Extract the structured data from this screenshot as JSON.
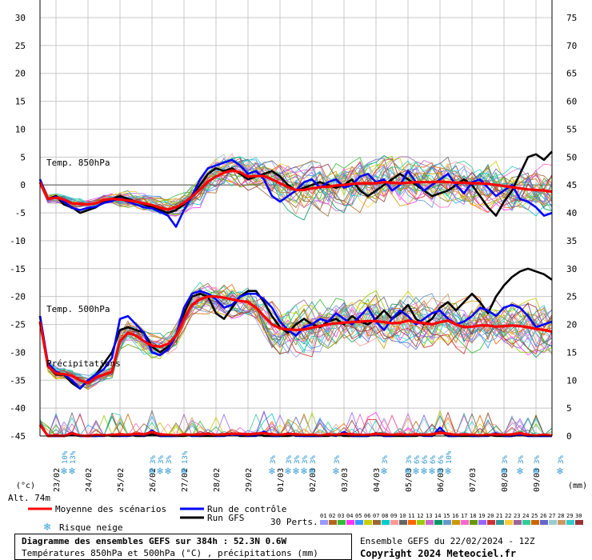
{
  "header": {
    "unit_left": "(°c)",
    "unit_right": "(mm)",
    "altitude": "Alt. 74m"
  },
  "labels": {
    "temp850": "Temp. 850hPa",
    "temp500": "Temp. 500hPa",
    "precip": "Précipitations"
  },
  "legend": {
    "mean": "Moyenne des scénarios",
    "control": "Run de contrôle",
    "gfs": "Run GFS",
    "snow": "Risque neige",
    "perts_label": "30 Perts.",
    "colors": {
      "mean": "#ff0000",
      "control": "#0000ff",
      "gfs": "#000000"
    }
  },
  "footer": {
    "title": "Diagramme des ensembles GEFS sur 384h : 52.3N 0.6W",
    "subtitle": "Températures 850hPa et 500hPa (°C) , précipitations (mm)",
    "run": "Ensemble GEFS du 22/02/2024 - 12Z",
    "copyright": "Copyright 2024 Meteociel.fr"
  },
  "snow_risk": [
    {
      "hour": 30,
      "label": "10%"
    },
    {
      "hour": 36,
      "label": "13%"
    },
    {
      "hour": 96,
      "label": "3%"
    },
    {
      "hour": 102,
      "label": "3%"
    },
    {
      "hour": 108,
      "label": "3%"
    },
    {
      "hour": 120,
      "label": "13%"
    },
    {
      "hour": 186,
      "label": "3%"
    },
    {
      "hour": 198,
      "label": "3%"
    },
    {
      "hour": 204,
      "label": "3%"
    },
    {
      "hour": 210,
      "label": "3%"
    },
    {
      "hour": 216,
      "label": "3%"
    },
    {
      "hour": 234,
      "label": "3%"
    },
    {
      "hour": 270,
      "label": "3%"
    },
    {
      "hour": 288,
      "label": "3%"
    },
    {
      "hour": 294,
      "label": "6%"
    },
    {
      "hour": 300,
      "label": "6%"
    },
    {
      "hour": 306,
      "label": "6%"
    },
    {
      "hour": 312,
      "label": "6%"
    },
    {
      "hour": 318,
      "label": "10%"
    },
    {
      "hour": 360,
      "label": "3%"
    },
    {
      "hour": 372,
      "label": "3%"
    },
    {
      "hour": 384,
      "label": "3%"
    },
    {
      "hour": 402,
      "label": "3%"
    }
  ],
  "chart_data": {
    "type": "line",
    "title": "Diagramme des ensembles GEFS sur 384h : 52.3N 0.6W",
    "x_unit": "forecast hour from 22/02/2024 12Z (6h steps)",
    "x_ticks": [
      "23/02",
      "24/02",
      "25/02",
      "26/02",
      "27/02",
      "28/02",
      "29/02",
      "01/03",
      "02/03",
      "03/03",
      "04/03",
      "05/03",
      "06/03",
      "07/03",
      "08/03",
      "09/03"
    ],
    "y_left": {
      "label": "(°c)",
      "range": [
        -45,
        30
      ],
      "ticks": [
        30,
        25,
        20,
        15,
        10,
        5,
        0,
        -5,
        -10,
        -15,
        -20,
        -25,
        -30,
        -35,
        -40,
        -45
      ]
    },
    "y_right": {
      "label": "(mm)",
      "range": [
        0,
        75
      ],
      "ticks": [
        75,
        70,
        65,
        60,
        55,
        50,
        45,
        40,
        35,
        30,
        25,
        20,
        15,
        10,
        5,
        0
      ]
    },
    "grid": true,
    "perturbation_count": 30,
    "perturbation_labels": [
      "01",
      "02",
      "03",
      "04",
      "05",
      "06",
      "07",
      "08",
      "09",
      "10",
      "11",
      "12",
      "13",
      "14",
      "15",
      "16",
      "17",
      "18",
      "19",
      "20",
      "21",
      "22",
      "23",
      "24",
      "25",
      "26",
      "27",
      "28",
      "29",
      "30"
    ],
    "perturbation_colors": [
      "#9999ff",
      "#b5651d",
      "#33bb33",
      "#ff33ff",
      "#3399ff",
      "#cccc00",
      "#996633",
      "#00cccc",
      "#ff9999",
      "#666666",
      "#ff6600",
      "#99cc00",
      "#cc66cc",
      "#009966",
      "#6699cc",
      "#cc9900",
      "#ff66cc",
      "#669900",
      "#9966ff",
      "#cc3333",
      "#339999",
      "#ffcc33",
      "#996699",
      "#33cc99",
      "#cc6600",
      "#6666cc",
      "#99cccc",
      "#cc9966",
      "#33cccc",
      "#993333"
    ],
    "t850": {
      "mean": [
        0.5,
        -2.5,
        -2.3,
        -2.6,
        -3.3,
        -3.4,
        -3.5,
        -3.3,
        -2.7,
        -2.5,
        -2.6,
        -2.8,
        -3.0,
        -3.3,
        -3.6,
        -4.1,
        -4.4,
        -4.0,
        -3.2,
        -2.1,
        -0.8,
        0.6,
        1.5,
        2.2,
        2.6,
        2.3,
        1.5,
        1.6,
        1.6,
        1.0,
        0.3,
        -0.4,
        -0.9,
        -0.9,
        -0.6,
        -0.4,
        -0.3,
        -0.1,
        0.0,
        0.2,
        0.3,
        0.3,
        0.3,
        0.5,
        0.4,
        0.3,
        0.4,
        0.5,
        0.5,
        0.5,
        0.6,
        0.5,
        0.4,
        0.4,
        0.3,
        0.3,
        0.2,
        0.0,
        -0.2,
        -0.4,
        -0.6,
        -0.8,
        -0.9,
        -1.0,
        -1.2
      ],
      "control": [
        1.0,
        -2.6,
        -2.1,
        -3.0,
        -4.1,
        -4.5,
        -4.1,
        -3.9,
        -3.2,
        -2.9,
        -2.4,
        -3.0,
        -3.5,
        -4.0,
        -4.2,
        -4.8,
        -5.5,
        -7.5,
        -4.5,
        -2.0,
        1.0,
        3.0,
        3.5,
        4.0,
        4.5,
        3.5,
        2.0,
        2.5,
        1.0,
        -2.0,
        -3.0,
        -2.0,
        -1.0,
        0.5,
        1.0,
        -0.5,
        0.5,
        1.0,
        -0.5,
        0.0,
        1.5,
        2.0,
        0.5,
        1.0,
        -1.0,
        0.0,
        2.5,
        0.5,
        -1.0,
        0.0,
        1.0,
        2.0,
        0.0,
        -1.5,
        0.5,
        1.0,
        -0.5,
        -2.0,
        -1.0,
        0.0,
        -2.5,
        -3.0,
        -4.0,
        -5.5,
        -5.0
      ],
      "gfs": [
        1.0,
        -2.5,
        -2.0,
        -3.5,
        -4.0,
        -5.0,
        -4.5,
        -4.0,
        -3.0,
        -2.5,
        -2.0,
        -2.5,
        -3.0,
        -3.5,
        -4.0,
        -4.5,
        -5.0,
        -4.5,
        -3.5,
        -2.0,
        0.0,
        2.0,
        3.0,
        2.5,
        3.0,
        2.0,
        1.0,
        1.5,
        2.0,
        2.5,
        1.5,
        0.0,
        -1.0,
        -0.5,
        0.0,
        0.5,
        0.0,
        -0.5,
        0.0,
        1.0,
        -1.0,
        -2.0,
        -1.0,
        0.0,
        1.0,
        2.0,
        1.0,
        0.0,
        -1.0,
        -2.0,
        -1.5,
        -1.0,
        0.0,
        1.0,
        0.0,
        -2.0,
        -4.0,
        -5.5,
        -3.0,
        -1.0,
        2.0,
        5.0,
        5.5,
        4.5,
        6.0
      ]
    },
    "t500": {
      "mean": [
        -24.5,
        -32.5,
        -33.8,
        -33.9,
        -34.2,
        -35.0,
        -35.5,
        -34.5,
        -34.0,
        -33.5,
        -28.0,
        -26.5,
        -27.0,
        -28.0,
        -28.8,
        -29.0,
        -28.5,
        -27.0,
        -24.0,
        -21.5,
        -20.5,
        -20.0,
        -20.0,
        -20.2,
        -20.5,
        -20.8,
        -21.0,
        -22.0,
        -23.5,
        -25.0,
        -25.7,
        -25.9,
        -26.0,
        -25.9,
        -25.6,
        -25.3,
        -25.0,
        -24.8,
        -24.7,
        -24.6,
        -24.5,
        -24.4,
        -24.4,
        -24.6,
        -24.8,
        -24.7,
        -24.3,
        -24.6,
        -24.8,
        -25.0,
        -24.6,
        -24.3,
        -25.0,
        -25.5,
        -25.4,
        -25.2,
        -25.2,
        -25.4,
        -25.3,
        -25.2,
        -25.3,
        -25.5,
        -25.8,
        -26.0,
        -26.3
      ],
      "control": [
        -23.5,
        -32.0,
        -33.5,
        -34.0,
        -35.0,
        -36.5,
        -35.0,
        -34.0,
        -33.0,
        -31.0,
        -24.0,
        -23.5,
        -25.0,
        -26.5,
        -30.0,
        -30.5,
        -29.5,
        -27.0,
        -22.0,
        -19.5,
        -19.0,
        -19.5,
        -20.5,
        -22.0,
        -21.5,
        -20.0,
        -19.5,
        -19.5,
        -20.5,
        -22.0,
        -24.5,
        -26.0,
        -27.0,
        -25.5,
        -25.0,
        -24.0,
        -24.5,
        -23.0,
        -24.0,
        -25.0,
        -23.5,
        -22.0,
        -24.5,
        -26.0,
        -24.0,
        -22.5,
        -23.5,
        -25.0,
        -24.0,
        -23.0,
        -22.5,
        -24.0,
        -25.0,
        -24.5,
        -23.5,
        -22.0,
        -22.5,
        -23.5,
        -22.0,
        -21.5,
        -22.0,
        -23.5,
        -25.5,
        -25.0,
        -24.5
      ],
      "gfs": [
        -23.5,
        -32.5,
        -34.0,
        -34.0,
        -35.5,
        -36.5,
        -35.0,
        -34.0,
        -32.0,
        -30.0,
        -26.0,
        -25.5,
        -26.0,
        -26.5,
        -29.0,
        -30.0,
        -29.0,
        -27.0,
        -23.0,
        -20.0,
        -19.5,
        -20.0,
        -23.0,
        -24.0,
        -22.0,
        -20.0,
        -19.0,
        -19.0,
        -21.0,
        -23.5,
        -25.5,
        -26.5,
        -25.0,
        -24.0,
        -25.0,
        -25.5,
        -24.5,
        -24.0,
        -25.0,
        -23.5,
        -24.5,
        -25.0,
        -24.0,
        -22.5,
        -24.0,
        -23.0,
        -21.5,
        -24.0,
        -25.0,
        -24.0,
        -22.0,
        -21.0,
        -22.5,
        -21.0,
        -19.5,
        -21.0,
        -23.0,
        -20.0,
        -18.0,
        -16.5,
        -15.5,
        -15.0,
        -15.5,
        -16.0,
        -17.0
      ]
    },
    "precip_mm": {
      "mean": [
        2.0,
        0.0,
        0.1,
        0.0,
        0.5,
        0.1,
        0.0,
        0.2,
        0.1,
        0.2,
        0.3,
        0.2,
        0.4,
        0.3,
        0.7,
        0.3,
        0.2,
        0.1,
        0.3,
        0.2,
        0.3,
        0.4,
        0.2,
        0.3,
        0.4,
        0.4,
        0.3,
        0.4,
        0.5,
        0.3,
        0.2,
        0.4,
        0.3,
        0.2,
        0.2,
        0.1,
        0.3,
        0.2,
        0.4,
        0.3,
        0.2,
        0.2,
        0.4,
        0.3,
        0.2,
        0.3,
        0.2,
        0.3,
        0.2,
        0.3,
        0.6,
        0.4,
        0.2,
        0.3,
        0.2,
        0.1,
        0.2,
        0.3,
        0.2,
        0.3,
        0.5,
        0.2,
        0.1,
        0.2,
        0.1
      ],
      "control": [
        2.0,
        0.0,
        0.0,
        0.0,
        0.6,
        0.0,
        0.0,
        0.0,
        0.0,
        0.3,
        0.0,
        0.0,
        0.2,
        0.0,
        1.0,
        0.0,
        0.0,
        0.0,
        0.3,
        0.0,
        0.0,
        0.5,
        0.0,
        0.0,
        0.3,
        0.2,
        0.0,
        0.0,
        0.8,
        0.0,
        0.0,
        0.5,
        0.0,
        0.0,
        0.0,
        0.0,
        0.2,
        0.0,
        0.7,
        0.0,
        0.0,
        0.0,
        0.3,
        0.0,
        0.0,
        0.2,
        0.0,
        0.3,
        0.0,
        0.0,
        1.5,
        0.0,
        0.0,
        0.2,
        0.0,
        0.0,
        0.0,
        0.5,
        0.0,
        0.0,
        0.2,
        0.0,
        0.0,
        0.0,
        0.0
      ],
      "gfs": [
        2.0,
        0.0,
        0.0,
        0.0,
        0.2,
        0.0,
        0.0,
        0.0,
        0.2,
        0.0,
        0.0,
        0.3,
        0.0,
        0.0,
        0.3,
        0.0,
        0.0,
        0.0,
        0.0,
        0.2,
        0.0,
        0.0,
        0.0,
        0.2,
        0.5,
        0.0,
        0.0,
        0.5,
        0.0,
        0.0,
        0.0,
        0.0,
        0.2,
        0.0,
        0.0,
        0.0,
        0.0,
        0.3,
        0.0,
        0.0,
        0.0,
        0.0,
        0.5,
        0.0,
        0.0,
        0.0,
        0.0,
        0.0,
        0.3,
        0.0,
        0.8,
        0.0,
        0.0,
        0.0,
        0.0,
        0.0,
        0.2,
        0.0,
        0.0,
        0.0,
        0.5,
        0.0,
        0.0,
        0.0,
        0.0
      ]
    }
  }
}
